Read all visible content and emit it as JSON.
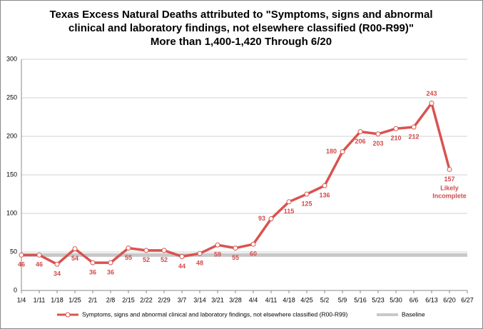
{
  "chart_data": {
    "type": "line",
    "title": [
      "Texas Excess Natural Deaths attributed to \"Symptoms, signs and abnormal",
      "clinical and laboratory findings, not elsewhere classified (R00-R99)\"",
      "More than 1,400-1,420 Through 6/20"
    ],
    "categories": [
      "1/4",
      "1/11",
      "1/18",
      "1/25",
      "2/1",
      "2/8",
      "2/15",
      "2/22",
      "2/29",
      "3/7",
      "3/14",
      "3/21",
      "3/28",
      "4/4",
      "4/11",
      "4/18",
      "4/25",
      "5/2",
      "5/9",
      "5/16",
      "5/23",
      "5/30",
      "6/6",
      "6/13",
      "6/20",
      "6/27"
    ],
    "series": [
      {
        "name": "Symptoms, signs and abnormal clinical and laboratory findings, not elsewhere classified (R00-R99)",
        "color": "#d9534f",
        "values": [
          46,
          46,
          34,
          54,
          36,
          36,
          55,
          52,
          52,
          44,
          48,
          59,
          55,
          60,
          93,
          115,
          125,
          136,
          180,
          206,
          203,
          210,
          212,
          243,
          157,
          null
        ]
      },
      {
        "name": "Baseline",
        "color": "#c8c8c8",
        "values": [
          46,
          46,
          46,
          46,
          46,
          46,
          46,
          46,
          46,
          46,
          46,
          46,
          46,
          46,
          46,
          46,
          46,
          46,
          46,
          46,
          46,
          46,
          46,
          46,
          46,
          46
        ]
      }
    ],
    "annotation": "Likely Incomplete",
    "ylim": [
      0,
      300
    ],
    "yticks": [
      0,
      50,
      100,
      150,
      200,
      250,
      300
    ],
    "grid": true,
    "legend": "bottom"
  }
}
